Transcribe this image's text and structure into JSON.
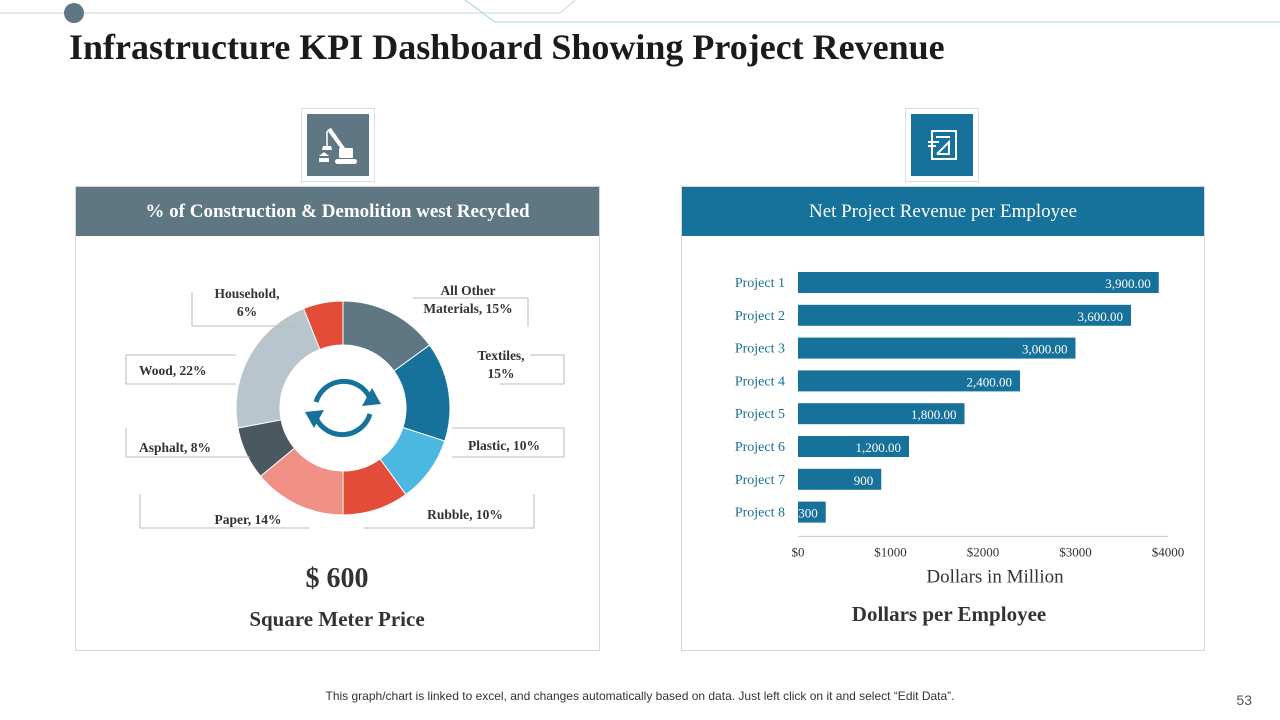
{
  "page": {
    "title": "Infrastructure KPI Dashboard Showing Project Revenue",
    "footer_note": "This graph/chart is linked to excel, and changes automatically based on data. Just left click on it and select “Edit Data”.",
    "page_number": "53"
  },
  "colors": {
    "slate": "#5f7782",
    "teal": "#16729a",
    "red": "#e44c3a",
    "light_blue": "#4ab8e0",
    "salmon": "#f08f84",
    "dark_slate": "#4a585f",
    "light_gray": "#b9c5cc"
  },
  "left_panel": {
    "header": "% of Construction & Demolition west Recycled",
    "icon": "crane-icon",
    "value": "$ 600",
    "caption": "Square Meter Price"
  },
  "right_panel": {
    "header": "Net Project Revenue per Employee",
    "icon": "blueprint-icon",
    "caption": "Dollars per Employee"
  },
  "chart_data": [
    {
      "type": "pie",
      "variant": "donut",
      "title": "% of Construction & Demolition west Recycled",
      "center_icon": "recycle-arrows-icon",
      "slices": [
        {
          "name": "All Other Materials",
          "value": 15,
          "label_lines": [
            "All Other",
            "Materials, 15%"
          ],
          "color": "#5f7782"
        },
        {
          "name": "Textiles",
          "value": 15,
          "label_lines": [
            "Textiles,",
            "15%"
          ],
          "color": "#16729a"
        },
        {
          "name": "Plastic",
          "value": 10,
          "label_lines": [
            "Plastic, 10%"
          ],
          "color": "#4ab8e0"
        },
        {
          "name": "Rubble",
          "value": 10,
          "label_lines": [
            "Rubble, 10%"
          ],
          "color": "#e44c3a"
        },
        {
          "name": "Paper",
          "value": 14,
          "label_lines": [
            "Paper, 14%"
          ],
          "color": "#f08f84"
        },
        {
          "name": "Asphalt",
          "value": 8,
          "label_lines": [
            "Asphalt, 8%"
          ],
          "color": "#4a585f"
        },
        {
          "name": "Wood",
          "value": 22,
          "label_lines": [
            "Wood, 22%"
          ],
          "color": "#b9c5cc"
        },
        {
          "name": "Household",
          "value": 6,
          "label_lines": [
            "Household,",
            "6%"
          ],
          "color": "#e44c3a"
        }
      ]
    },
    {
      "type": "bar",
      "orientation": "horizontal",
      "title": "Net Project Revenue per Employee",
      "categories": [
        "Project 1",
        "Project 2",
        "Project 3",
        "Project 4",
        "Project 5",
        "Project 6",
        "Project 7",
        "Project 8"
      ],
      "values": [
        3900,
        3600,
        3000,
        2400,
        1800,
        1200,
        900,
        300
      ],
      "value_labels": [
        "3,900.00",
        "3,600.00",
        "3,000.00",
        "2,400.00",
        "1,800.00",
        "1,200.00",
        "900",
        "300"
      ],
      "xlabel": "Dollars  in Million",
      "xlim": [
        0,
        4000
      ],
      "xticks": [
        0,
        1000,
        2000,
        3000,
        4000
      ],
      "xtick_labels": [
        "$0",
        "$1000",
        "$2000",
        "$3000",
        "$4000"
      ],
      "bar_color": "#16729a"
    }
  ]
}
